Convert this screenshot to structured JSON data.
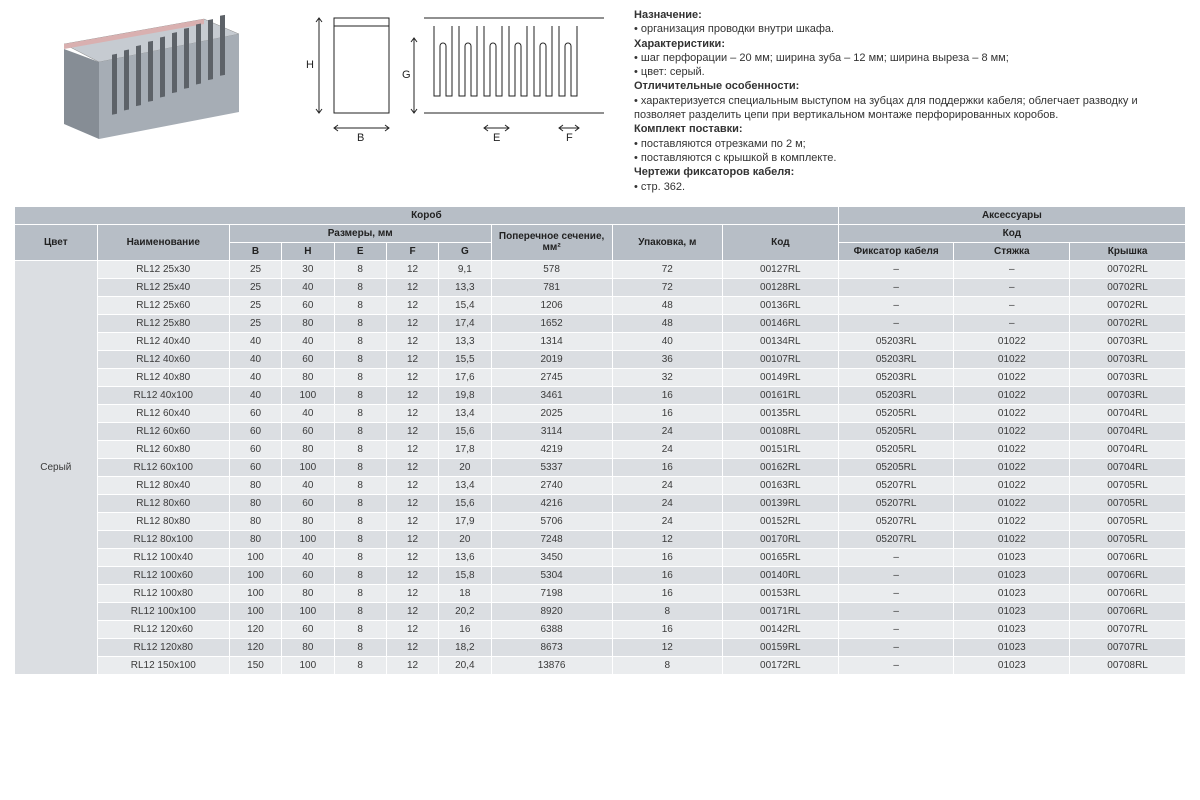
{
  "colors": {
    "header_bg": "#b7bec6",
    "row_even": "#eaecee",
    "row_odd": "#dbdee2",
    "border": "#ffffff",
    "text": "#3a3a3a",
    "duct_body": "#a6adb5",
    "duct_shadow": "#868d95",
    "duct_edge": "#d9b0b0"
  },
  "description": {
    "purpose_label": "Назначение:",
    "purpose_text": "организация проводки внутри шкафа.",
    "specs_label": "Характеристики:",
    "specs_text1": "шаг перфорации – 20 мм; ширина зуба – 12 мм; ширина выреза – 8 мм;",
    "specs_text2": "цвет: серый.",
    "features_label": "Отличительные особенности:",
    "features_text": "характеризуется специальным выступом на зубцах для поддержки кабеля; облегчает разводку и позволяет разделить цепи при вертикальном монтаже перфорированных коробов.",
    "delivery_label": "Комплект поставки:",
    "delivery_text1": "поставляются отрезками по 2 м;",
    "delivery_text2": "поставляются с крышкой в комплекте.",
    "drawings_label": "Чертежи фиксаторов кабеля:",
    "drawings_text": "стр. 362."
  },
  "diagram_labels": {
    "H": "H",
    "B": "B",
    "G": "G",
    "E": "E",
    "F": "F"
  },
  "table": {
    "group1": "Короб",
    "group2": "Аксессуары",
    "col_color": "Цвет",
    "col_name": "Наименование",
    "col_dims": "Размеры, мм",
    "col_B": "B",
    "col_H": "H",
    "col_E": "E",
    "col_F": "F",
    "col_G": "G",
    "col_cross": "Поперечное сечение, мм²",
    "col_pack": "Упаковка, м",
    "col_code": "Код",
    "col_fix": "Фиксатор кабеля",
    "col_tie": "Стяжка",
    "col_cover": "Крышка",
    "color_value": "Серый",
    "rows": [
      {
        "name": "RL12 25x30",
        "B": "25",
        "H": "30",
        "E": "8",
        "F": "12",
        "G": "9,1",
        "cross": "578",
        "pack": "72",
        "code": "00127RL",
        "fix": "–",
        "tie": "–",
        "cover": "00702RL"
      },
      {
        "name": "RL12 25x40",
        "B": "25",
        "H": "40",
        "E": "8",
        "F": "12",
        "G": "13,3",
        "cross": "781",
        "pack": "72",
        "code": "00128RL",
        "fix": "–",
        "tie": "–",
        "cover": "00702RL"
      },
      {
        "name": "RL12 25x60",
        "B": "25",
        "H": "60",
        "E": "8",
        "F": "12",
        "G": "15,4",
        "cross": "1206",
        "pack": "48",
        "code": "00136RL",
        "fix": "–",
        "tie": "–",
        "cover": "00702RL"
      },
      {
        "name": "RL12 25x80",
        "B": "25",
        "H": "80",
        "E": "8",
        "F": "12",
        "G": "17,4",
        "cross": "1652",
        "pack": "48",
        "code": "00146RL",
        "fix": "–",
        "tie": "–",
        "cover": "00702RL"
      },
      {
        "name": "RL12 40x40",
        "B": "40",
        "H": "40",
        "E": "8",
        "F": "12",
        "G": "13,3",
        "cross": "1314",
        "pack": "40",
        "code": "00134RL",
        "fix": "05203RL",
        "tie": "01022",
        "cover": "00703RL"
      },
      {
        "name": "RL12 40x60",
        "B": "40",
        "H": "60",
        "E": "8",
        "F": "12",
        "G": "15,5",
        "cross": "2019",
        "pack": "36",
        "code": "00107RL",
        "fix": "05203RL",
        "tie": "01022",
        "cover": "00703RL"
      },
      {
        "name": "RL12 40x80",
        "B": "40",
        "H": "80",
        "E": "8",
        "F": "12",
        "G": "17,6",
        "cross": "2745",
        "pack": "32",
        "code": "00149RL",
        "fix": "05203RL",
        "tie": "01022",
        "cover": "00703RL"
      },
      {
        "name": "RL12 40x100",
        "B": "40",
        "H": "100",
        "E": "8",
        "F": "12",
        "G": "19,8",
        "cross": "3461",
        "pack": "16",
        "code": "00161RL",
        "fix": "05203RL",
        "tie": "01022",
        "cover": "00703RL"
      },
      {
        "name": "RL12 60x40",
        "B": "60",
        "H": "40",
        "E": "8",
        "F": "12",
        "G": "13,4",
        "cross": "2025",
        "pack": "16",
        "code": "00135RL",
        "fix": "05205RL",
        "tie": "01022",
        "cover": "00704RL"
      },
      {
        "name": "RL12 60x60",
        "B": "60",
        "H": "60",
        "E": "8",
        "F": "12",
        "G": "15,6",
        "cross": "3114",
        "pack": "24",
        "code": "00108RL",
        "fix": "05205RL",
        "tie": "01022",
        "cover": "00704RL"
      },
      {
        "name": "RL12 60x80",
        "B": "60",
        "H": "80",
        "E": "8",
        "F": "12",
        "G": "17,8",
        "cross": "4219",
        "pack": "24",
        "code": "00151RL",
        "fix": "05205RL",
        "tie": "01022",
        "cover": "00704RL"
      },
      {
        "name": "RL12 60x100",
        "B": "60",
        "H": "100",
        "E": "8",
        "F": "12",
        "G": "20",
        "cross": "5337",
        "pack": "16",
        "code": "00162RL",
        "fix": "05205RL",
        "tie": "01022",
        "cover": "00704RL"
      },
      {
        "name": "RL12 80x40",
        "B": "80",
        "H": "40",
        "E": "8",
        "F": "12",
        "G": "13,4",
        "cross": "2740",
        "pack": "24",
        "code": "00163RL",
        "fix": "05207RL",
        "tie": "01022",
        "cover": "00705RL"
      },
      {
        "name": "RL12 80x60",
        "B": "80",
        "H": "60",
        "E": "8",
        "F": "12",
        "G": "15,6",
        "cross": "4216",
        "pack": "24",
        "code": "00139RL",
        "fix": "05207RL",
        "tie": "01022",
        "cover": "00705RL"
      },
      {
        "name": "RL12 80x80",
        "B": "80",
        "H": "80",
        "E": "8",
        "F": "12",
        "G": "17,9",
        "cross": "5706",
        "pack": "24",
        "code": "00152RL",
        "fix": "05207RL",
        "tie": "01022",
        "cover": "00705RL"
      },
      {
        "name": "RL12 80x100",
        "B": "80",
        "H": "100",
        "E": "8",
        "F": "12",
        "G": "20",
        "cross": "7248",
        "pack": "12",
        "code": "00170RL",
        "fix": "05207RL",
        "tie": "01022",
        "cover": "00705RL"
      },
      {
        "name": "RL12 100x40",
        "B": "100",
        "H": "40",
        "E": "8",
        "F": "12",
        "G": "13,6",
        "cross": "3450",
        "pack": "16",
        "code": "00165RL",
        "fix": "–",
        "tie": "01023",
        "cover": "00706RL"
      },
      {
        "name": "RL12 100x60",
        "B": "100",
        "H": "60",
        "E": "8",
        "F": "12",
        "G": "15,8",
        "cross": "5304",
        "pack": "16",
        "code": "00140RL",
        "fix": "–",
        "tie": "01023",
        "cover": "00706RL"
      },
      {
        "name": "RL12 100x80",
        "B": "100",
        "H": "80",
        "E": "8",
        "F": "12",
        "G": "18",
        "cross": "7198",
        "pack": "16",
        "code": "00153RL",
        "fix": "–",
        "tie": "01023",
        "cover": "00706RL"
      },
      {
        "name": "RL12 100x100",
        "B": "100",
        "H": "100",
        "E": "8",
        "F": "12",
        "G": "20,2",
        "cross": "8920",
        "pack": "8",
        "code": "00171RL",
        "fix": "–",
        "tie": "01023",
        "cover": "00706RL"
      },
      {
        "name": "RL12 120x60",
        "B": "120",
        "H": "60",
        "E": "8",
        "F": "12",
        "G": "16",
        "cross": "6388",
        "pack": "16",
        "code": "00142RL",
        "fix": "–",
        "tie": "01023",
        "cover": "00707RL"
      },
      {
        "name": "RL12 120x80",
        "B": "120",
        "H": "80",
        "E": "8",
        "F": "12",
        "G": "18,2",
        "cross": "8673",
        "pack": "12",
        "code": "00159RL",
        "fix": "–",
        "tie": "01023",
        "cover": "00707RL"
      },
      {
        "name": "RL12 150x100",
        "B": "150",
        "H": "100",
        "E": "8",
        "F": "12",
        "G": "20,4",
        "cross": "13876",
        "pack": "8",
        "code": "00172RL",
        "fix": "–",
        "tie": "01023",
        "cover": "00708RL"
      }
    ]
  }
}
